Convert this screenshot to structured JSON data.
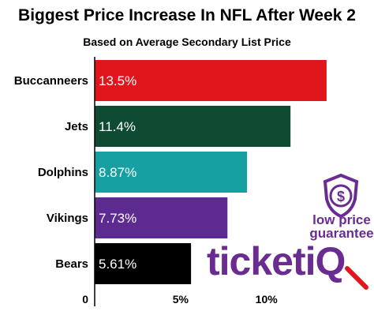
{
  "chart_data": {
    "type": "bar",
    "orientation": "horizontal",
    "title": "Biggest Price Increase In NFL After Week 2",
    "subtitle": "Based on Average Secondary List Price",
    "categories": [
      "Buccanneers",
      "Jets",
      "Dolphins",
      "Vikings",
      "Bears"
    ],
    "values": [
      13.5,
      11.4,
      8.87,
      7.73,
      5.61
    ],
    "value_labels": [
      "13.5%",
      "11.4%",
      "8.87%",
      "7.73%",
      "5.61%"
    ],
    "bar_colors": [
      "#e0161c",
      "#0f4a33",
      "#16a0a2",
      "#5d2b8f",
      "#000000"
    ],
    "x_ticks": [
      {
        "value": 0,
        "label": "0"
      },
      {
        "value": 5,
        "label": "5%"
      },
      {
        "value": 10,
        "label": "10%"
      }
    ],
    "xlim": [
      0,
      14.7
    ],
    "grid": false
  },
  "brand": {
    "badge_line1": "low price",
    "badge_line2": "guarantee",
    "logo": "ticketiQ",
    "accent_color": "#6a2c91",
    "badge_icon": "dollar-shield-icon"
  }
}
